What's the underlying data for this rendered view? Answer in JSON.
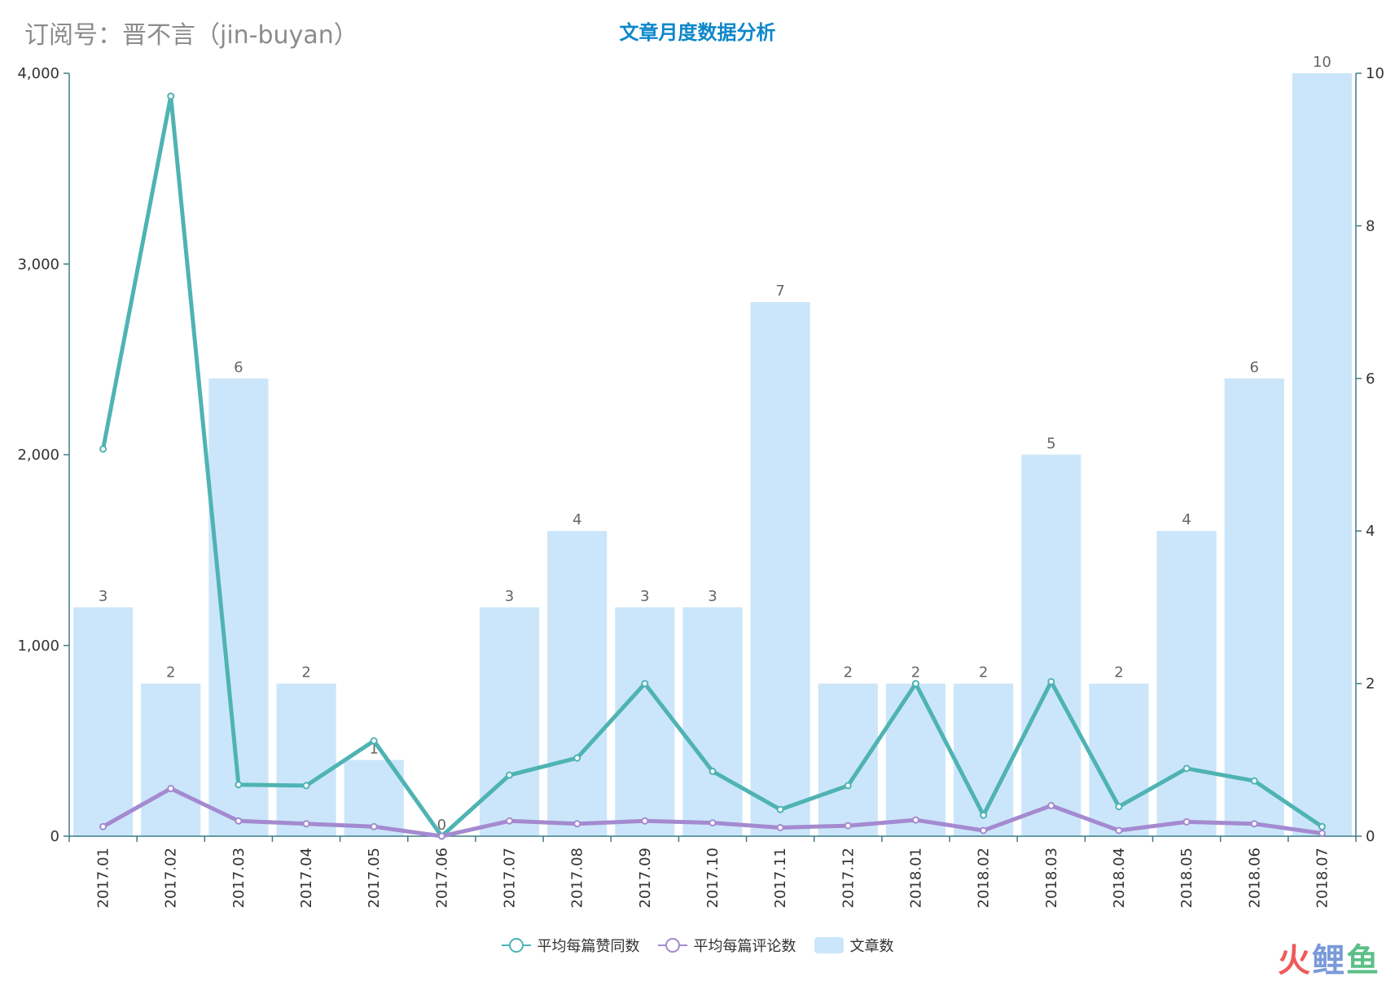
{
  "header": {
    "subtitle": "订阅号：晋不言（jin-buyan）"
  },
  "chart_data": {
    "type": "bar",
    "title": "文章月度数据分析",
    "categories": [
      "2017.01",
      "2017.02",
      "2017.03",
      "2017.04",
      "2017.05",
      "2017.06",
      "2017.07",
      "2017.08",
      "2017.09",
      "2017.10",
      "2017.11",
      "2017.12",
      "2018.01",
      "2018.02",
      "2018.03",
      "2018.04",
      "2018.05",
      "2018.06",
      "2018.07"
    ],
    "y_left": {
      "ylim": [
        0,
        4000
      ],
      "ticks": [
        0,
        1000,
        2000,
        3000,
        4000
      ],
      "tick_labels": [
        "0",
        "1,000",
        "2,000",
        "3,000",
        "4,000"
      ]
    },
    "y_right": {
      "ylim": [
        0,
        10
      ],
      "ticks": [
        0,
        2,
        4,
        6,
        8,
        10
      ],
      "tick_labels": [
        "0",
        "2",
        "4",
        "6",
        "8",
        "10"
      ]
    },
    "series": [
      {
        "name": "文章数",
        "kind": "bar",
        "axis": "right",
        "color": "#cbe6fa",
        "values": [
          3,
          2,
          6,
          2,
          1,
          0,
          3,
          4,
          3,
          3,
          7,
          2,
          2,
          2,
          5,
          2,
          4,
          6,
          10
        ]
      },
      {
        "name": "平均每篇赞同数",
        "kind": "line",
        "axis": "left",
        "color": "#4fb3b3",
        "values": [
          2030,
          3880,
          270,
          265,
          500,
          0,
          320,
          410,
          800,
          340,
          140,
          265,
          800,
          110,
          810,
          155,
          355,
          290,
          50
        ]
      },
      {
        "name": "平均每篇评论数",
        "kind": "line",
        "axis": "left",
        "color": "#a48ad0",
        "values": [
          50,
          250,
          80,
          65,
          50,
          0,
          80,
          65,
          80,
          70,
          45,
          55,
          85,
          30,
          160,
          30,
          75,
          65,
          15
        ]
      }
    ],
    "legend_position": "bottom-center",
    "grid": false
  },
  "watermark": {
    "part1": "火",
    "part2": "鲤",
    "part3": "鱼"
  }
}
